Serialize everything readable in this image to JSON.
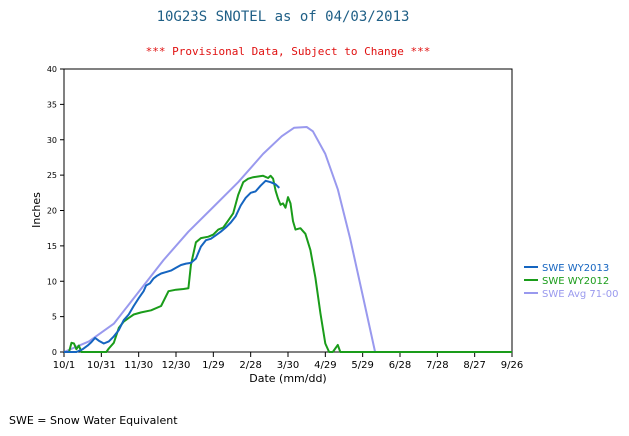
{
  "chart_data": {
    "type": "line",
    "title": "10G23S SNOTEL as of 04/03/2013",
    "subtitle": "*** Provisional Data, Subject to Change ***",
    "xlabel": "Date (mm/dd)",
    "ylabel": "Inches",
    "footnote": "SWE = Snow Water Equivalent",
    "ylim": [
      0,
      40
    ],
    "yticks": [
      "0",
      "5",
      "10",
      "15",
      "20",
      "25",
      "30",
      "35",
      "40"
    ],
    "xlim": [
      0,
      360
    ],
    "xtick_days": [
      0,
      30,
      60,
      90,
      120,
      150,
      180,
      210,
      240,
      270,
      300,
      330,
      360
    ],
    "xtick_labels": [
      "10/1",
      "10/31",
      "11/30",
      "12/30",
      "1/29",
      "2/28",
      "3/30",
      "4/29",
      "5/29",
      "6/28",
      "7/28",
      "8/27",
      "9/26"
    ],
    "grid": false,
    "legend_position": "right",
    "series": [
      {
        "name": "SWE WY2013",
        "color": "#1565c0",
        "points": [
          [
            0,
            0
          ],
          [
            10,
            0
          ],
          [
            15,
            0.4
          ],
          [
            19,
            0.9
          ],
          [
            22,
            1.4
          ],
          [
            25,
            2.0
          ],
          [
            28,
            1.6
          ],
          [
            32,
            1.2
          ],
          [
            36,
            1.5
          ],
          [
            40,
            2.2
          ],
          [
            44,
            3.1
          ],
          [
            48,
            4.5
          ],
          [
            52,
            5.3
          ],
          [
            56,
            6.5
          ],
          [
            60,
            7.6
          ],
          [
            64,
            8.6
          ],
          [
            66,
            9.4
          ],
          [
            69,
            9.7
          ],
          [
            72,
            10.4
          ],
          [
            75,
            10.8
          ],
          [
            78,
            11.1
          ],
          [
            82,
            11.3
          ],
          [
            86,
            11.5
          ],
          [
            90,
            11.9
          ],
          [
            94,
            12.3
          ],
          [
            98,
            12.5
          ],
          [
            102,
            12.6
          ],
          [
            106,
            13.2
          ],
          [
            110,
            14.9
          ],
          [
            114,
            15.8
          ],
          [
            118,
            16.0
          ],
          [
            122,
            16.5
          ],
          [
            126,
            17.0
          ],
          [
            130,
            17.6
          ],
          [
            134,
            18.3
          ],
          [
            138,
            19.2
          ],
          [
            142,
            20.7
          ],
          [
            146,
            21.8
          ],
          [
            150,
            22.5
          ],
          [
            154,
            22.7
          ],
          [
            158,
            23.5
          ],
          [
            162,
            24.2
          ],
          [
            166,
            24.0
          ],
          [
            170,
            23.7
          ],
          [
            173,
            23.2
          ]
        ]
      },
      {
        "name": "SWE WY2012",
        "color": "#1a9c1a",
        "points": [
          [
            0,
            0
          ],
          [
            4,
            0
          ],
          [
            6,
            1.3
          ],
          [
            8,
            1.2
          ],
          [
            10,
            0.4
          ],
          [
            12,
            0.9
          ],
          [
            14,
            0
          ],
          [
            28,
            0
          ],
          [
            34,
            0
          ],
          [
            36,
            0.5
          ],
          [
            40,
            1.3
          ],
          [
            44,
            3.4
          ],
          [
            48,
            4.3
          ],
          [
            52,
            4.8
          ],
          [
            56,
            5.3
          ],
          [
            62,
            5.6
          ],
          [
            70,
            5.9
          ],
          [
            78,
            6.5
          ],
          [
            84,
            8.6
          ],
          [
            90,
            8.8
          ],
          [
            96,
            8.9
          ],
          [
            100,
            9.0
          ],
          [
            102,
            12.3
          ],
          [
            106,
            15.5
          ],
          [
            110,
            16.1
          ],
          [
            116,
            16.3
          ],
          [
            120,
            16.6
          ],
          [
            124,
            17.3
          ],
          [
            128,
            17.6
          ],
          [
            132,
            18.6
          ],
          [
            136,
            19.6
          ],
          [
            140,
            22.2
          ],
          [
            144,
            24.0
          ],
          [
            148,
            24.5
          ],
          [
            152,
            24.7
          ],
          [
            156,
            24.8
          ],
          [
            160,
            24.9
          ],
          [
            164,
            24.6
          ],
          [
            166,
            24.9
          ],
          [
            168,
            24.5
          ],
          [
            170,
            22.8
          ],
          [
            172,
            21.7
          ],
          [
            174,
            20.8
          ],
          [
            176,
            21.0
          ],
          [
            178,
            20.4
          ],
          [
            180,
            21.9
          ],
          [
            182,
            21.0
          ],
          [
            184,
            18.5
          ],
          [
            186,
            17.3
          ],
          [
            190,
            17.5
          ],
          [
            194,
            16.7
          ],
          [
            198,
            14.4
          ],
          [
            202,
            10.5
          ],
          [
            206,
            5.5
          ],
          [
            210,
            1.2
          ],
          [
            213,
            0
          ],
          [
            216,
            0
          ],
          [
            220,
            1.0
          ],
          [
            222,
            0
          ],
          [
            360,
            0
          ]
        ]
      },
      {
        "name": "SWE Avg 71-00",
        "color": "#9999ee",
        "points": [
          [
            0,
            0
          ],
          [
            20,
            1.5
          ],
          [
            40,
            4.0
          ],
          [
            60,
            8.5
          ],
          [
            80,
            13.0
          ],
          [
            100,
            17.0
          ],
          [
            120,
            20.5
          ],
          [
            140,
            24.0
          ],
          [
            160,
            28.0
          ],
          [
            175,
            30.5
          ],
          [
            185,
            31.7
          ],
          [
            195,
            31.8
          ],
          [
            200,
            31.2
          ],
          [
            210,
            28.0
          ],
          [
            220,
            23.0
          ],
          [
            230,
            16.0
          ],
          [
            240,
            8.0
          ],
          [
            250,
            0
          ],
          [
            360,
            0
          ]
        ]
      }
    ]
  }
}
